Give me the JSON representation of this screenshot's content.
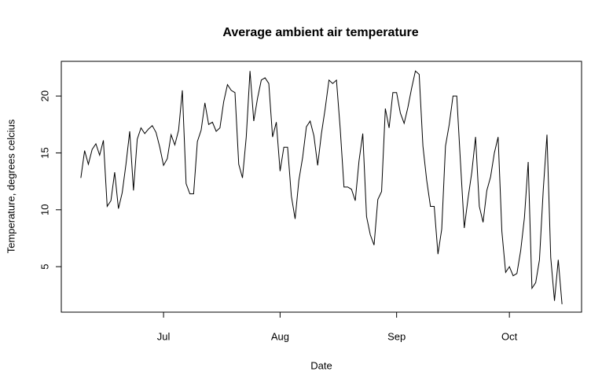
{
  "chart_data": {
    "type": "line",
    "title": "Average ambient air temperature",
    "xlabel": "Date",
    "ylabel": "Temperature, degrees celcius",
    "x": [
      8,
      9,
      10,
      11,
      12,
      13,
      14,
      15,
      16,
      17,
      18,
      19,
      20,
      21,
      22,
      23,
      24,
      25,
      26,
      27,
      28,
      29,
      30,
      31,
      32,
      33,
      34,
      35,
      36,
      37,
      38,
      39,
      40,
      41,
      42,
      43,
      44,
      45,
      46,
      47,
      48,
      49,
      50,
      51,
      52,
      53,
      54,
      55,
      56,
      57,
      58,
      59,
      60,
      61,
      62,
      63,
      64,
      65,
      66,
      67,
      68,
      69,
      70,
      71,
      72,
      73,
      74,
      75,
      76,
      77,
      78,
      79,
      80,
      81,
      82,
      83,
      84,
      85,
      86,
      87,
      88,
      89,
      90,
      91,
      92,
      93,
      94,
      95,
      96,
      97,
      98,
      99,
      100,
      101,
      102,
      103,
      104,
      105,
      106,
      107,
      108,
      109,
      110,
      111,
      112,
      113,
      114,
      115,
      116,
      117,
      118,
      119,
      120,
      121,
      122,
      123,
      124,
      125,
      126,
      127,
      128,
      129,
      130,
      131,
      132,
      133,
      134,
      135,
      136
    ],
    "series": [
      {
        "color": "#000000",
        "values": [
          12.8,
          15.2,
          14.0,
          15.3,
          15.8,
          14.8,
          16.1,
          10.3,
          10.8,
          13.3,
          10.1,
          11.5,
          14.0,
          16.9,
          11.7,
          16.2,
          17.2,
          16.7,
          17.1,
          17.4,
          16.8,
          15.5,
          13.9,
          14.5,
          16.6,
          15.7,
          17.0,
          20.5,
          12.3,
          11.4,
          11.4,
          16.0,
          17.0,
          19.4,
          17.5,
          17.7,
          16.9,
          17.2,
          19.5,
          21.0,
          20.5,
          20.3,
          14.0,
          12.8,
          16.4,
          22.2,
          17.8,
          19.8,
          21.4,
          21.6,
          21.1,
          16.4,
          17.7,
          13.4,
          15.5,
          15.5,
          11.2,
          9.2,
          12.6,
          14.6,
          17.3,
          17.8,
          16.5,
          13.9,
          16.7,
          18.9,
          21.4,
          21.1,
          21.4,
          17.1,
          12.0,
          12.0,
          11.8,
          10.8,
          14.3,
          16.7,
          9.4,
          7.8,
          6.9,
          10.9,
          11.6,
          18.9,
          17.2,
          20.3,
          20.3,
          18.5,
          17.6,
          19.0,
          20.7,
          22.2,
          21.9,
          15.6,
          12.6,
          10.3,
          10.3,
          6.1,
          8.3,
          15.6,
          17.5,
          20.0,
          20.0,
          14.1,
          8.4,
          11.0,
          13.3,
          16.4,
          10.3,
          8.9,
          11.7,
          12.9,
          15.0,
          16.4,
          8.1,
          4.5,
          5.0,
          4.2,
          4.4,
          6.4,
          9.3,
          14.2,
          3.1,
          3.6,
          5.6,
          11.7,
          16.6,
          5.8,
          2.0,
          5.6,
          1.7
        ]
      }
    ],
    "xlim": [
      2.8,
      141.2
    ],
    "xticks": [
      {
        "value": 30,
        "label": "Jul"
      },
      {
        "value": 61,
        "label": "Aug"
      },
      {
        "value": 92,
        "label": "Sep"
      },
      {
        "value": 122,
        "label": "Oct"
      }
    ],
    "ylim": [
      1.0,
      23.05
    ],
    "yticks": [
      5,
      10,
      15,
      20
    ]
  }
}
